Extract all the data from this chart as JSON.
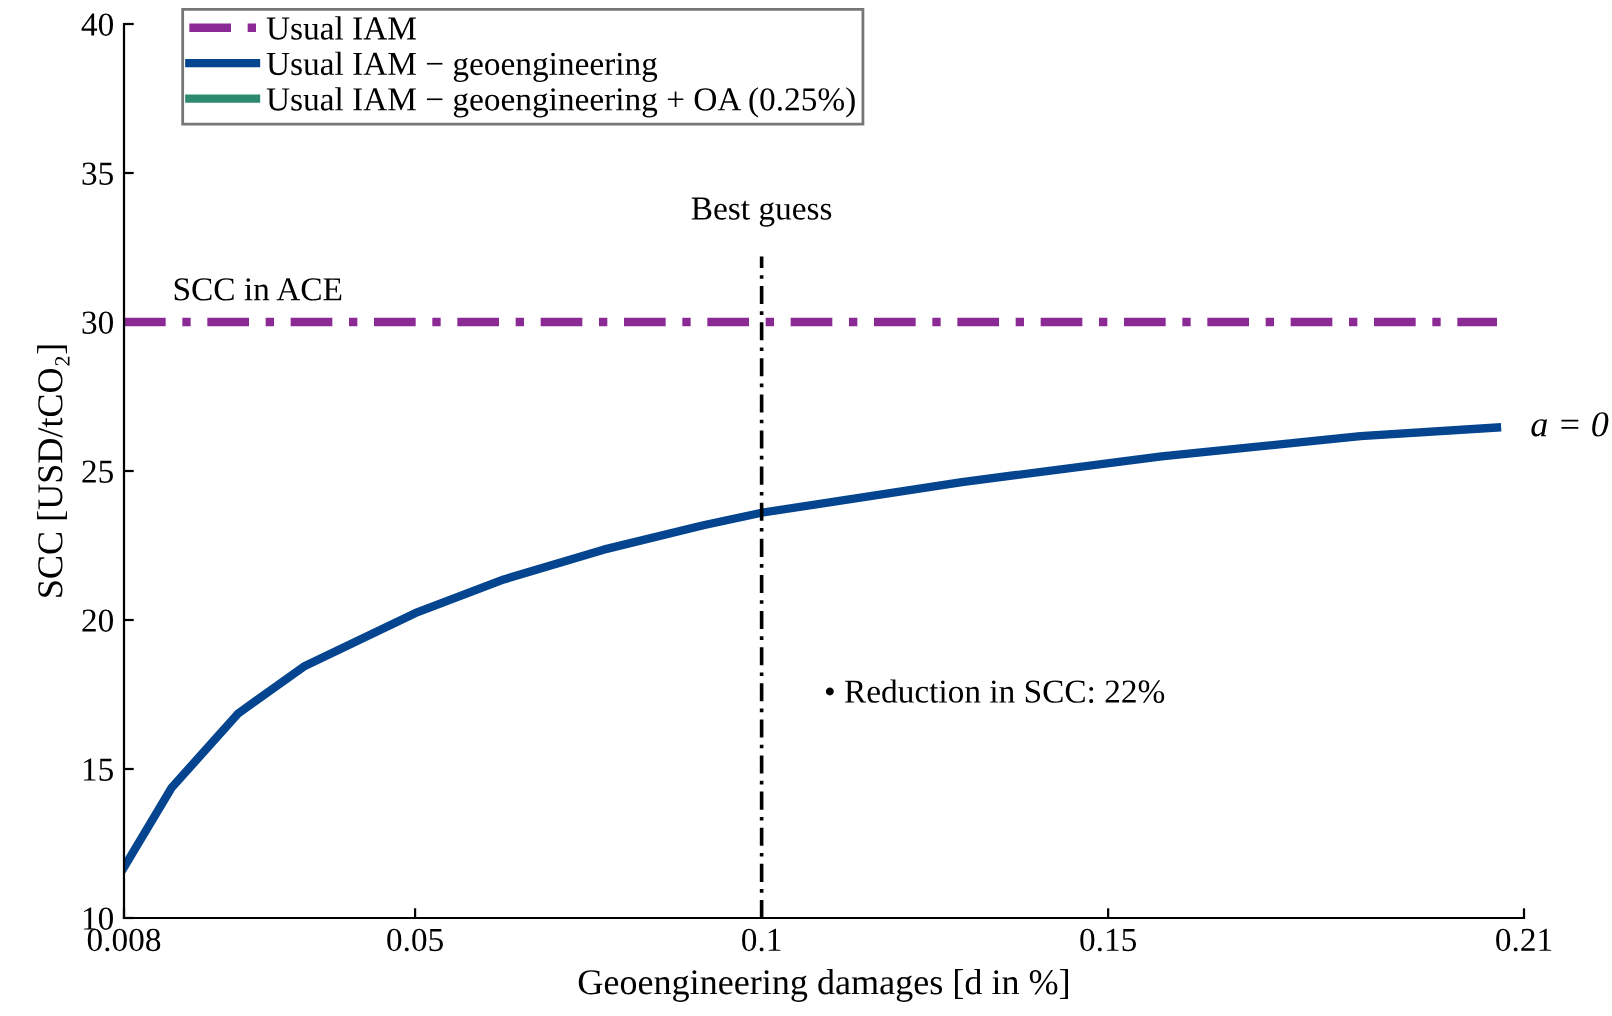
{
  "chart_data": {
    "type": "line",
    "xlabel": "Geoengineering damages [d in %]",
    "ylabel": "SCC [USD/tCO₂]",
    "xlim": [
      0.008,
      0.21
    ],
    "xticks": [
      0.008,
      0.05,
      0.1,
      0.15,
      0.21
    ],
    "ylim": [
      10,
      40
    ],
    "yticks": [
      10,
      15,
      20,
      25,
      30,
      35,
      40
    ],
    "grid": false,
    "legend": "top left",
    "marker": "none",
    "series": [
      {
        "name": "Usual IAM",
        "color": "#8b2a94",
        "line_style": "dashed",
        "x": [
          0.008,
          0.2061
        ],
        "values": [
          30,
          30
        ]
      },
      {
        "name": "Usual IAM − geoengineering",
        "color": "#05458f",
        "line_style": "solid",
        "x": [
          0.008,
          0.0149,
          0.0245,
          0.0341,
          0.05,
          0.0628,
          0.0772,
          0.0916,
          0.1,
          0.1289,
          0.1577,
          0.1864,
          0.2061
        ],
        "values": [
          11.7,
          14.38,
          16.87,
          18.46,
          20.23,
          21.36,
          22.36,
          23.18,
          23.6,
          24.63,
          25.49,
          26.17,
          26.46
        ]
      },
      {
        "name": "Usual IAM − geoengineering + OA (0.25%)",
        "color": "#2e8a6e",
        "line_style": "solid"
      }
    ],
    "ref_lines": [
      {
        "axis": "x",
        "value": 0.1,
        "label": "Best guess",
        "color": "#000000",
        "line_style": "dashed"
      }
    ],
    "annotations": [
      "SCC in ACE",
      {
        "text": "a = 0",
        "x": 0.2061,
        "y": 26.46
      },
      "• Reduction in SCC: 22%"
    ]
  }
}
